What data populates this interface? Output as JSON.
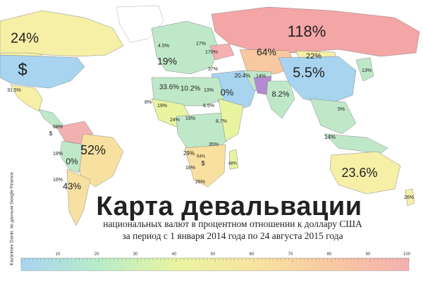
{
  "title": "Карта девальвации",
  "subtitle_line1": "национальных валют в процентном отношении к доллару США",
  "subtitle_line2": "за период с 1 января 2014 года по 24 августа 2015 года",
  "credit": "Kazantsev Daniil, по данным Google Finance",
  "scale": {
    "ticks": [
      "10",
      "20",
      "30",
      "40",
      "50",
      "60",
      "70",
      "80",
      "90",
      "100"
    ],
    "colors": [
      "#a8d4f0",
      "#b8ecc8",
      "#e8f4a0",
      "#f8e4a0",
      "#f8c8a0",
      "#f4b0b0"
    ]
  },
  "labels": [
    {
      "text": "24%",
      "size": "big"
    },
    {
      "text": "$",
      "size": "big"
    },
    {
      "text": "31.5%",
      "size": "small"
    },
    {
      "text": "118%",
      "size": "big"
    },
    {
      "text": "64%",
      "size": "mid"
    },
    {
      "text": "22%",
      "size": "mid"
    },
    {
      "text": "5.5%",
      "size": "big"
    },
    {
      "text": "13%",
      "size": "small"
    },
    {
      "text": "8.2%",
      "size": "mid"
    },
    {
      "text": "5%",
      "size": "small"
    },
    {
      "text": "14%",
      "size": "small"
    },
    {
      "text": "23.6%",
      "size": "big"
    },
    {
      "text": "26%",
      "size": "small"
    },
    {
      "text": "19%",
      "size": "mid"
    },
    {
      "text": "4.5%",
      "size": "small"
    },
    {
      "text": "17%",
      "size": "small"
    },
    {
      "text": "170%",
      "size": "small"
    },
    {
      "text": "37%",
      "size": "small"
    },
    {
      "text": "20.4%",
      "size": "small"
    },
    {
      "text": "14%",
      "size": "small"
    },
    {
      "text": "33.6%",
      "size": "mid"
    },
    {
      "text": "10.2%",
      "size": "mid"
    },
    {
      "text": "13%",
      "size": "small"
    },
    {
      "text": "0%",
      "size": "mid"
    },
    {
      "text": "6.5%",
      "size": "small"
    },
    {
      "text": "8%",
      "size": "small"
    },
    {
      "text": "19%",
      "size": "small"
    },
    {
      "text": "24%",
      "size": "small"
    },
    {
      "text": "19%",
      "size": "small"
    },
    {
      "text": "8.7%",
      "size": "small"
    },
    {
      "text": "29%",
      "size": "small"
    },
    {
      "text": "54%",
      "size": "small"
    },
    {
      "text": "35%",
      "size": "small"
    },
    {
      "text": "$",
      "size": "small"
    },
    {
      "text": "48%",
      "size": "small"
    },
    {
      "text": "18%",
      "size": "small"
    },
    {
      "text": "26%",
      "size": "small"
    },
    {
      "text": "68%",
      "size": "small"
    },
    {
      "text": "$",
      "size": "small"
    },
    {
      "text": "52%",
      "size": "big"
    },
    {
      "text": "18%",
      "size": "small"
    },
    {
      "text": "0%",
      "size": "mid"
    },
    {
      "text": "43%",
      "size": "mid"
    },
    {
      "text": "16%",
      "size": "small"
    }
  ]
}
